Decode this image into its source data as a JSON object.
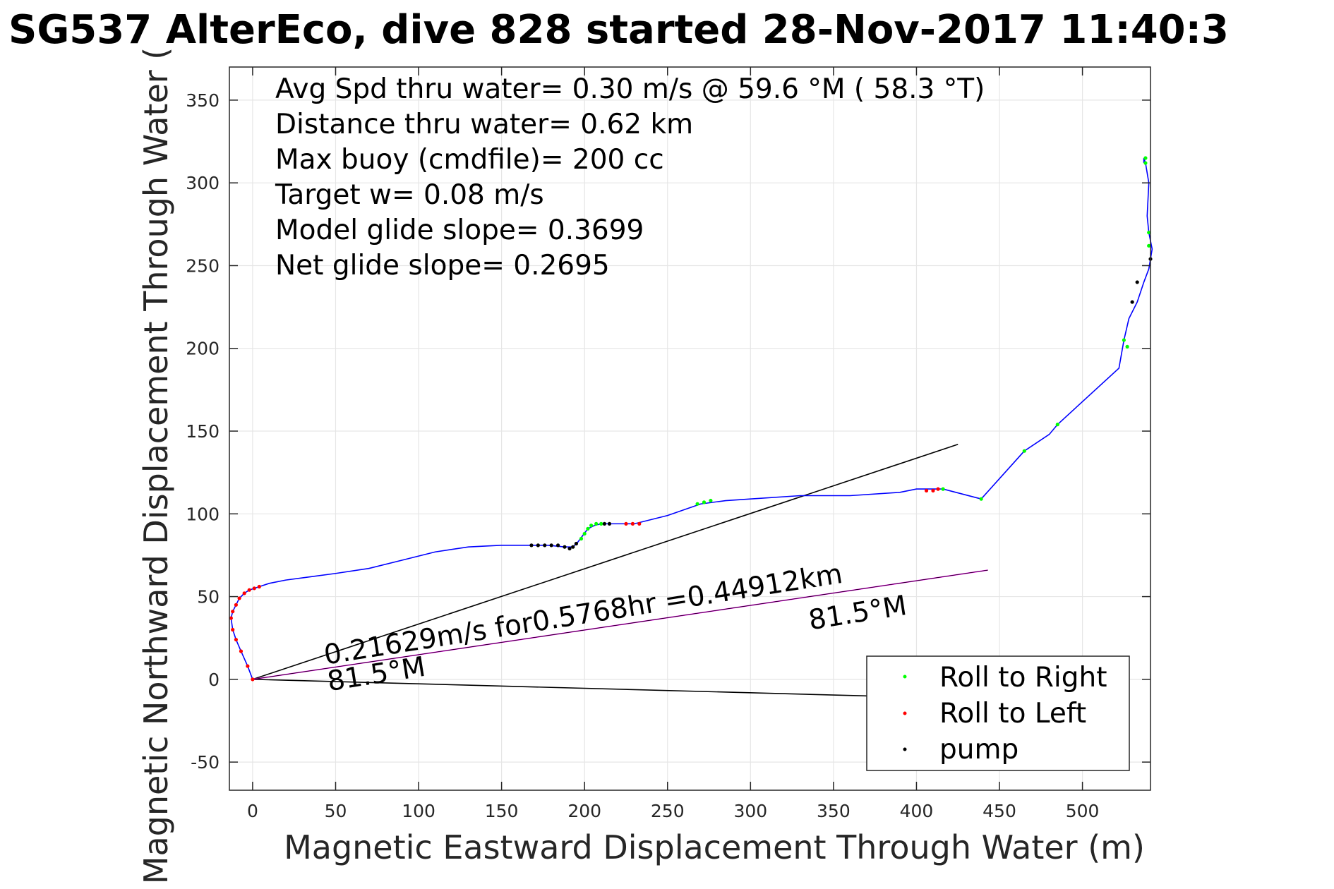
{
  "chart_data": {
    "type": "line",
    "title": "SG537 AlterEco, dive 828 started 28-Nov-2017 11:40:3",
    "xlabel": "Magnetic Eastward Displacement Through Water (m)",
    "ylabel": "Magnetic Northward Displacement Through Water (",
    "xlim": [
      -14,
      541
    ],
    "ylim": [
      -67,
      370
    ],
    "xticks": [
      0,
      50,
      100,
      150,
      200,
      250,
      300,
      350,
      400,
      450,
      500
    ],
    "xtick_labels": [
      "0",
      "50",
      "100",
      "150",
      "200",
      "250",
      "300",
      "350",
      "400",
      "450",
      "500"
    ],
    "yticks": [
      -50,
      0,
      50,
      100,
      150,
      200,
      250,
      300,
      350
    ],
    "ytick_labels": [
      "-50",
      "0",
      "50",
      "100",
      "150",
      "200",
      "250",
      "300",
      "350"
    ],
    "grid": true,
    "legend_position": "bottom-right",
    "stats": [
      "Avg Spd thru water=  0.30 m/s @  59.6 °M ( 58.3 °T)",
      "Distance thru water=  0.62 km",
      "Max buoy (cmdfile)= 200 cc",
      "Target w= 0.08 m/s",
      "Model glide slope= 0.3699",
      "Net glide slope= 0.2695"
    ],
    "track": {
      "name": "track",
      "color": "#0000ff",
      "x": [
        0,
        -3,
        -7,
        -10,
        -12,
        -13,
        -12,
        -10,
        -8,
        -5,
        -2,
        1,
        4,
        10,
        20,
        35,
        50,
        70,
        90,
        110,
        130,
        150,
        165,
        178,
        188,
        193,
        196,
        199,
        202,
        206,
        210,
        216,
        222,
        230,
        250,
        270,
        285,
        300,
        330,
        360,
        390,
        400,
        410,
        416,
        439,
        465,
        480,
        485,
        522,
        525,
        528,
        533,
        537,
        540,
        541,
        542,
        541,
        540,
        539,
        540,
        538,
        537,
        537
      ],
      "y": [
        0,
        8,
        17,
        24,
        30,
        37,
        41,
        45,
        49,
        52,
        54,
        55,
        56,
        58,
        60,
        62,
        64,
        67,
        72,
        77,
        80,
        81,
        81,
        81,
        80,
        80,
        83,
        87,
        91,
        93,
        94,
        94,
        94,
        94,
        99,
        106,
        108,
        109,
        111,
        111,
        113,
        115,
        115,
        115,
        109,
        138,
        148,
        154,
        188,
        205,
        218,
        228,
        240,
        248,
        254,
        260,
        265,
        270,
        280,
        300,
        312,
        315,
        312
      ]
    },
    "roll_right": {
      "name": "Roll to Right",
      "color": "#00ff00",
      "points": [
        [
          198,
          85
        ],
        [
          200,
          88
        ],
        [
          202,
          91
        ],
        [
          204,
          93
        ],
        [
          207,
          94
        ],
        [
          210,
          94
        ],
        [
          268,
          106
        ],
        [
          272,
          107
        ],
        [
          276,
          108
        ],
        [
          416,
          115
        ],
        [
          439,
          109
        ],
        [
          465,
          138
        ],
        [
          485,
          154
        ],
        [
          525,
          205
        ],
        [
          527,
          201
        ],
        [
          540,
          270
        ],
        [
          540,
          262
        ],
        [
          538,
          312
        ],
        [
          538,
          315
        ]
      ]
    },
    "roll_left": {
      "name": "Roll to Left",
      "color": "#ff0000",
      "points": [
        [
          0,
          0
        ],
        [
          -3,
          8
        ],
        [
          -7,
          17
        ],
        [
          -10,
          24
        ],
        [
          -12,
          30
        ],
        [
          -13,
          37
        ],
        [
          -12,
          41
        ],
        [
          -10,
          45
        ],
        [
          -8,
          49
        ],
        [
          -5,
          52
        ],
        [
          -2,
          54
        ],
        [
          1,
          55
        ],
        [
          4,
          56
        ],
        [
          225,
          94
        ],
        [
          229,
          94
        ],
        [
          233,
          94
        ],
        [
          406,
          114
        ],
        [
          410,
          114
        ],
        [
          413,
          115
        ]
      ]
    },
    "pump": {
      "name": "pump",
      "color": "#000000",
      "points": [
        [
          168,
          81
        ],
        [
          172,
          81
        ],
        [
          176,
          81
        ],
        [
          180,
          81
        ],
        [
          184,
          81
        ],
        [
          188,
          80
        ],
        [
          191,
          79
        ],
        [
          193,
          80
        ],
        [
          195,
          82
        ],
        [
          212,
          94
        ],
        [
          215,
          94
        ],
        [
          533,
          240
        ],
        [
          530,
          228
        ],
        [
          541,
          254
        ]
      ]
    },
    "lines": [
      {
        "name": "model-glide-line",
        "color": "#000000",
        "x": [
          0,
          425
        ],
        "y": [
          0,
          142
        ]
      },
      {
        "name": "lower-black-line",
        "color": "#000000",
        "x": [
          0,
          370
        ],
        "y": [
          0,
          -10
        ]
      },
      {
        "name": "net-line",
        "color": "#ff00ff",
        "x": [
          0,
          443
        ],
        "y": [
          0,
          66
        ]
      },
      {
        "name": "net-line-dark",
        "color": "#000000",
        "x": [
          0,
          443
        ],
        "y": [
          0,
          66
        ]
      }
    ],
    "annotations": [
      {
        "text": "0.21629m/s for0.5768hr =0.44912km",
        "x": 44,
        "y": 9,
        "angle_deg": -9
      },
      {
        "text": "81.5°M",
        "x": 46,
        "y": -7,
        "angle_deg": -9
      },
      {
        "text": "81.5°M",
        "x": 336,
        "y": 30,
        "angle_deg": -9
      }
    ],
    "legend": [
      "Roll to Right",
      "Roll to Left",
      "pump"
    ]
  }
}
